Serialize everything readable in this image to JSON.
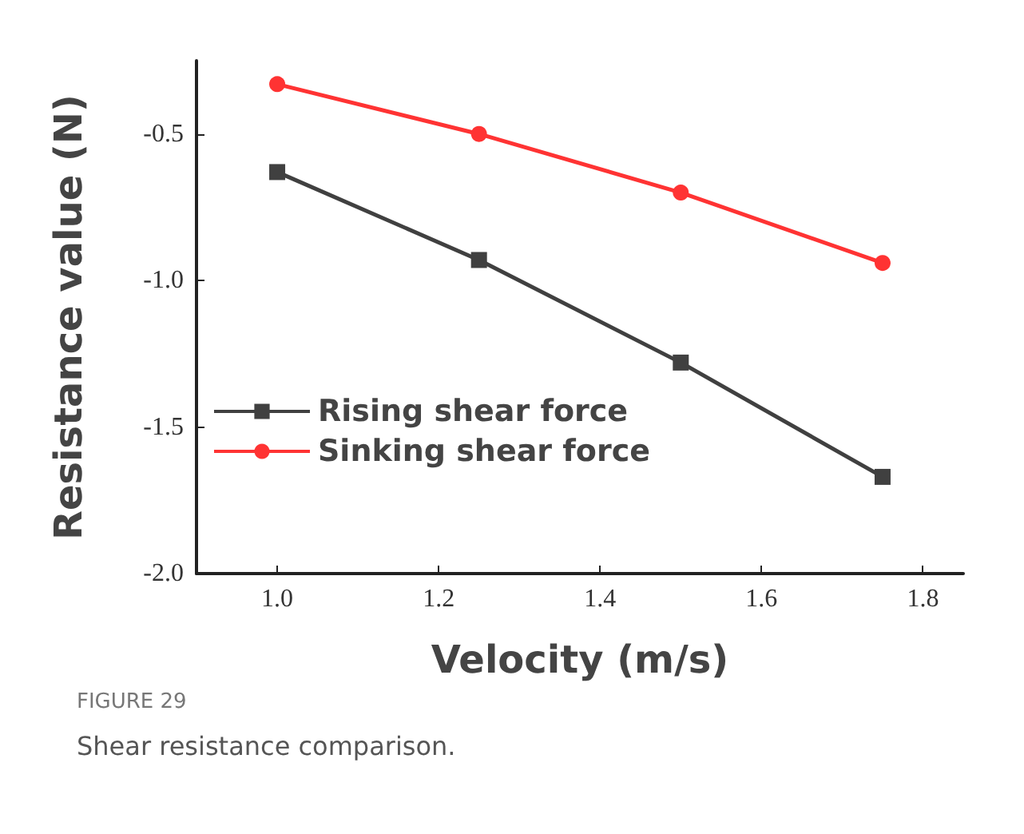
{
  "chart_data": {
    "type": "line",
    "xlabel": "Velocity (m/s)",
    "ylabel": "Resistance value (N)",
    "x": [
      1.0,
      1.25,
      1.5,
      1.75
    ],
    "series": [
      {
        "name": "Rising shear force",
        "color": "#404040",
        "marker": "square",
        "values": [
          -0.63,
          -0.93,
          -1.28,
          -1.67
        ]
      },
      {
        "name": "Sinking shear force",
        "color": "#ff3333",
        "marker": "circle",
        "values": [
          -0.33,
          -0.5,
          -0.7,
          -0.94
        ]
      }
    ],
    "xlim": [
      0.9,
      1.85
    ],
    "xticks": [
      {
        "value": 1,
        "label": "1.0"
      },
      1.2,
      1.4,
      1.6,
      1.8
    ],
    "ylim": [
      -2.0,
      -0.25
    ],
    "yticks": [
      {
        "value": -2,
        "label": "-2.0"
      },
      -1.5,
      {
        "value": -1,
        "label": "-1.0"
      },
      -0.5
    ],
    "grid": false,
    "legend": "left",
    "annotations": [
      "FIGURE 29",
      "Shear resistance comparison."
    ]
  }
}
